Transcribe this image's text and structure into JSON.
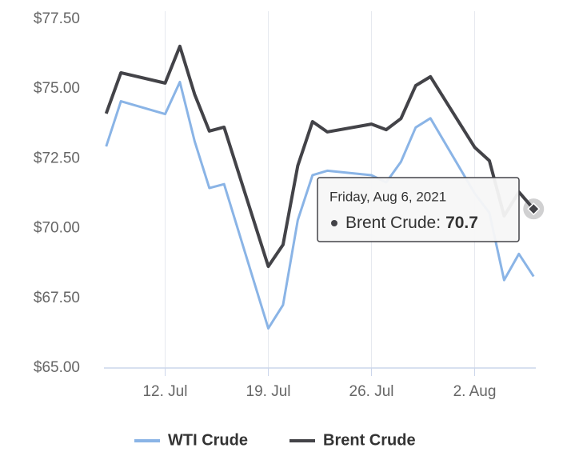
{
  "chart_data": {
    "type": "line",
    "x": [
      8,
      9,
      12,
      13,
      14,
      15,
      16,
      19,
      20,
      21,
      22,
      23,
      26,
      27,
      28,
      29,
      30,
      33,
      34,
      35,
      36,
      37
    ],
    "xlim": [
      7.85,
      37.15
    ],
    "xticks": [
      {
        "value": 12,
        "label": "12. Jul"
      },
      {
        "value": 19,
        "label": "19. Jul"
      },
      {
        "value": 26,
        "label": "26. Jul"
      },
      {
        "value": 33,
        "label": "2. Aug"
      }
    ],
    "ylim": [
      65,
      77.5
    ],
    "yticks": [
      {
        "value": 65,
        "label": "$65.00"
      },
      {
        "value": 67.5,
        "label": "$67.50"
      },
      {
        "value": 70,
        "label": "$70.00"
      },
      {
        "value": 72.5,
        "label": "$72.50"
      },
      {
        "value": 75,
        "label": "$75.00"
      },
      {
        "value": 77.5,
        "label": "$77.50"
      }
    ],
    "grid": "x",
    "series": [
      {
        "name": "WTI Crude",
        "color": "#8ab4e6",
        "values": [
          72.94,
          74.56,
          74.1,
          75.25,
          73.13,
          71.45,
          71.59,
          66.42,
          67.26,
          70.3,
          71.91,
          72.07,
          71.91,
          71.65,
          72.39,
          73.62,
          73.95,
          71.26,
          70.56,
          68.15,
          69.09,
          68.28
        ]
      },
      {
        "name": "Brent Crude",
        "color": "#434348",
        "values": [
          74.12,
          75.58,
          75.21,
          76.53,
          74.81,
          73.49,
          73.63,
          68.64,
          69.42,
          72.25,
          73.83,
          73.46,
          73.74,
          73.54,
          73.94,
          75.12,
          75.44,
          72.91,
          72.43,
          70.45,
          71.31,
          70.7
        ]
      }
    ],
    "tooltip": {
      "title": "Friday, Aug 6, 2021",
      "label": "Brent Crude:",
      "x": 37,
      "value": 70.7
    }
  }
}
